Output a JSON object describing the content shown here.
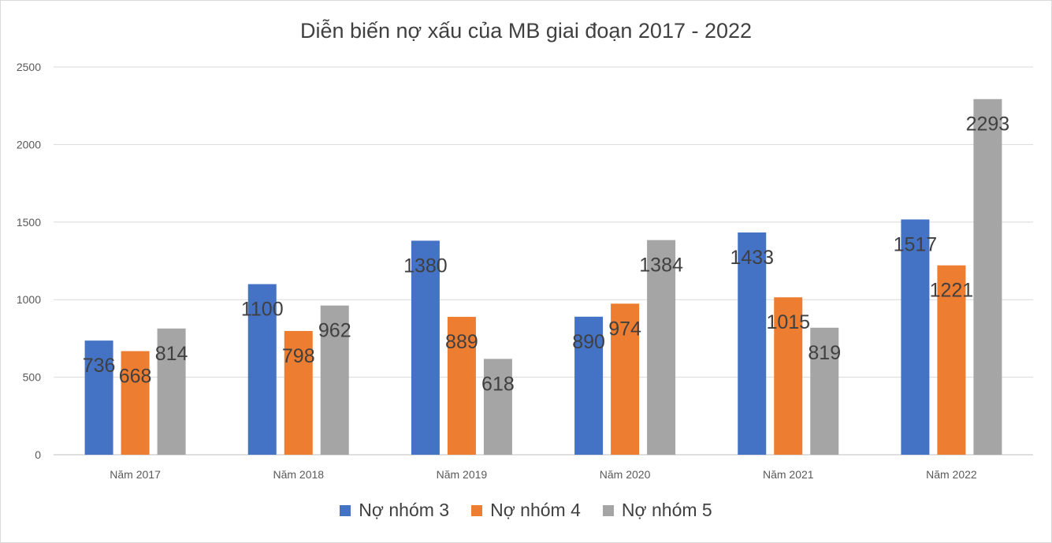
{
  "chart_data": {
    "type": "bar",
    "title": "Diễn biến nợ xấu của MB giai đoạn 2017 - 2022",
    "categories": [
      "Năm 2017",
      "Năm 2018",
      "Năm 2019",
      "Năm 2020",
      "Năm 2021",
      "Năm 2022"
    ],
    "series": [
      {
        "name": "Nợ nhóm 3",
        "color": "#4472c4",
        "values": [
          736,
          1100,
          1380,
          890,
          1433,
          1517
        ]
      },
      {
        "name": "Nợ nhóm 4",
        "color": "#ed7d31",
        "values": [
          668,
          798,
          889,
          974,
          1015,
          1221
        ]
      },
      {
        "name": "Nợ nhóm 5",
        "color": "#a5a5a5",
        "values": [
          814,
          962,
          618,
          1384,
          819,
          2293
        ]
      }
    ],
    "ylim": [
      0,
      2500
    ],
    "yticks": [
      "0",
      "500",
      "1000",
      "1500",
      "2000",
      "2500"
    ],
    "grid": true,
    "legend_position": "bottom"
  }
}
